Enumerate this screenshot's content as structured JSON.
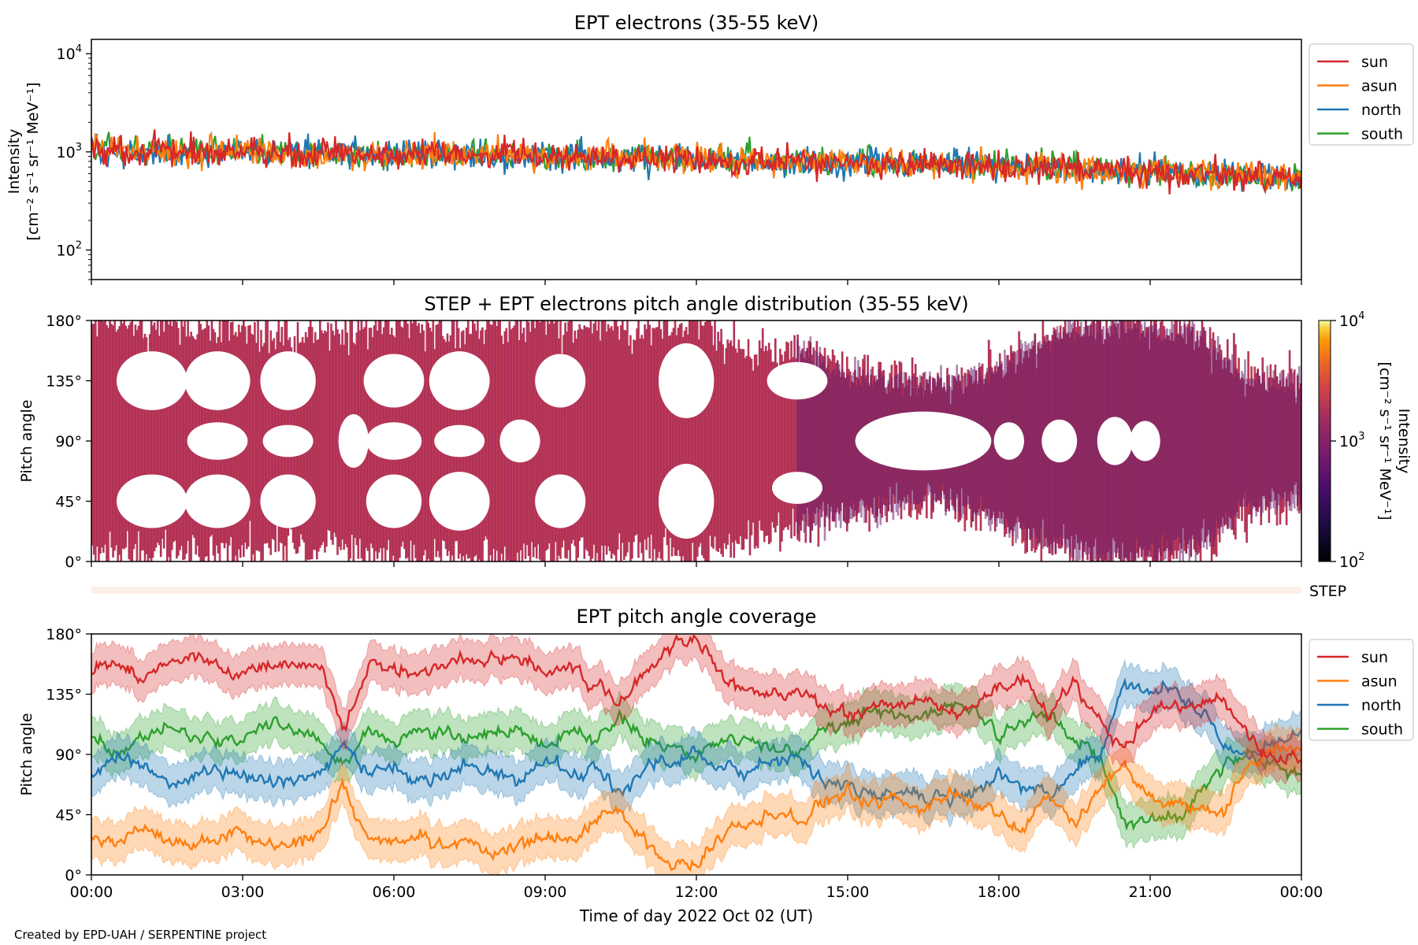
{
  "footer": "Created by EPD-UAH / SERPENTINE project",
  "colors": {
    "sun": "#d62728",
    "asun": "#ff7f0e",
    "north": "#1f77b4",
    "south": "#2ca02c"
  },
  "chart_data": [
    {
      "id": "panel1",
      "type": "line",
      "title": "EPT electrons (35-55 keV)",
      "ylabel": [
        "Intensity",
        "[cm⁻² s⁻¹ sr⁻¹ MeV⁻¹]"
      ],
      "yscale": "log",
      "ylim": [
        50,
        14000
      ],
      "yticks": [
        {
          "v": 100,
          "exp": "2"
        },
        {
          "v": 1000,
          "exp": "3"
        },
        {
          "v": 10000,
          "exp": "4"
        }
      ],
      "legend_position": "right",
      "series": [
        {
          "name": "sun",
          "color": "#d62728",
          "x": [
            0,
            1,
            2,
            3,
            4,
            5,
            6,
            7,
            8,
            9,
            10,
            11,
            12,
            13,
            14,
            15,
            16,
            17,
            18,
            19,
            20,
            21,
            22,
            23,
            24
          ],
          "y": [
            1050,
            1020,
            1000,
            980,
            960,
            950,
            940,
            930,
            920,
            900,
            880,
            860,
            840,
            820,
            800,
            780,
            760,
            730,
            700,
            680,
            650,
            620,
            590,
            560,
            530
          ]
        },
        {
          "name": "asun",
          "color": "#ff7f0e",
          "x": [
            0,
            1,
            2,
            3,
            4,
            5,
            6,
            7,
            8,
            9,
            10,
            11,
            12,
            13,
            14,
            15,
            16,
            17,
            18,
            19,
            20,
            21,
            22,
            23,
            24
          ],
          "y": [
            1080,
            1040,
            1010,
            990,
            970,
            960,
            950,
            940,
            930,
            910,
            890,
            870,
            850,
            830,
            810,
            790,
            770,
            740,
            710,
            690,
            660,
            630,
            600,
            570,
            540
          ]
        },
        {
          "name": "north",
          "color": "#1f77b4",
          "x": [
            0,
            1,
            2,
            3,
            4,
            5,
            6,
            7,
            8,
            9,
            10,
            11,
            12,
            13,
            14,
            15,
            16,
            17,
            18,
            19,
            20,
            21,
            22,
            23,
            24
          ],
          "y": [
            1060,
            1030,
            1000,
            985,
            965,
            955,
            945,
            935,
            925,
            905,
            885,
            865,
            845,
            825,
            805,
            785,
            765,
            735,
            705,
            685,
            655,
            625,
            595,
            565,
            535
          ]
        },
        {
          "name": "south",
          "color": "#2ca02c",
          "x": [
            0,
            1,
            2,
            3,
            4,
            5,
            6,
            7,
            8,
            9,
            10,
            11,
            12,
            13,
            14,
            15,
            16,
            17,
            18,
            19,
            20,
            21,
            22,
            23,
            24
          ],
          "y": [
            1100,
            1060,
            1030,
            1000,
            980,
            970,
            960,
            950,
            940,
            920,
            900,
            880,
            860,
            840,
            820,
            800,
            780,
            750,
            720,
            700,
            670,
            640,
            610,
            580,
            550
          ]
        }
      ]
    },
    {
      "id": "panel2",
      "type": "heatmap",
      "title": "STEP + EPT electrons pitch angle distribution (35-55 keV)",
      "ylabel": "Pitch angle",
      "ylim": [
        0,
        180
      ],
      "yticks": [
        "0°",
        "45°",
        "90°",
        "135°",
        "180°"
      ],
      "colorbar": {
        "label": [
          "Intensity",
          "[cm⁻² s⁻¹ sr⁻¹ MeV⁻¹]"
        ],
        "scale": "log",
        "range": [
          100,
          10000
        ],
        "ticks": [
          {
            "v": 100,
            "exp": "2"
          },
          {
            "v": 1000,
            "exp": "3"
          },
          {
            "v": 10000,
            "exp": "4"
          }
        ],
        "cmap": "inferno"
      },
      "coverage": {
        "x": [
          0,
          1,
          2,
          3,
          4,
          5,
          6,
          7,
          8,
          9,
          10,
          11,
          12,
          13,
          14,
          15,
          16,
          17,
          18,
          19,
          20,
          21,
          22,
          23,
          24
        ],
        "upper": [
          178,
          176,
          174,
          175,
          170,
          175,
          178,
          174,
          178,
          178,
          176,
          170,
          180,
          160,
          160,
          140,
          135,
          135,
          145,
          170,
          178,
          175,
          170,
          135,
          135
        ],
        "lower": [
          2,
          5,
          5,
          8,
          12,
          10,
          2,
          5,
          2,
          2,
          5,
          10,
          0,
          15,
          25,
          35,
          40,
          45,
          30,
          10,
          2,
          5,
          10,
          40,
          45
        ]
      }
    },
    {
      "id": "step-strip",
      "type": "heatmap",
      "label": "STEP"
    },
    {
      "id": "panel3",
      "type": "area",
      "title": "EPT pitch angle coverage",
      "ylabel": "Pitch angle",
      "xlabel": "Time of day 2022 Oct 02 (UT)",
      "ylim": [
        0,
        180
      ],
      "yticks": [
        "0°",
        "45°",
        "90°",
        "135°",
        "180°"
      ],
      "xticks": [
        "00:00",
        "03:00",
        "06:00",
        "09:00",
        "12:00",
        "15:00",
        "18:00",
        "21:00",
        "00:00"
      ],
      "xlim": [
        0,
        24
      ],
      "legend_position": "right",
      "band_halfwidth_deg": 15,
      "series": [
        {
          "name": "sun",
          "color": "#d62728",
          "x": [
            0,
            0.5,
            1,
            1.5,
            2,
            2.5,
            3,
            3.5,
            4,
            4.5,
            5,
            5.5,
            6,
            6.5,
            7,
            7.5,
            8,
            8.5,
            9,
            9.5,
            10,
            10.5,
            11,
            11.5,
            12,
            12.5,
            13,
            13.5,
            14,
            14.5,
            15,
            15.5,
            16,
            16.5,
            17,
            17.5,
            18,
            18.5,
            19,
            19.5,
            20,
            20.5,
            21,
            21.5,
            22,
            22.5,
            23,
            23.5,
            24
          ],
          "y": [
            150,
            160,
            145,
            158,
            162,
            155,
            150,
            160,
            158,
            155,
            110,
            160,
            155,
            150,
            160,
            158,
            165,
            160,
            150,
            155,
            140,
            130,
            155,
            170,
            175,
            150,
            140,
            135,
            140,
            125,
            120,
            125,
            125,
            130,
            120,
            125,
            140,
            145,
            120,
            145,
            115,
            95,
            120,
            125,
            130,
            130,
            100,
            85,
            90
          ]
        },
        {
          "name": "asun",
          "color": "#ff7f0e",
          "x": [
            0,
            0.5,
            1,
            1.5,
            2,
            2.5,
            3,
            3.5,
            4,
            4.5,
            5,
            5.5,
            6,
            6.5,
            7,
            7.5,
            8,
            8.5,
            9,
            9.5,
            10,
            10.5,
            11,
            11.5,
            12,
            12.5,
            13,
            13.5,
            14,
            14.5,
            15,
            15.5,
            16,
            16.5,
            17,
            17.5,
            18,
            18.5,
            19,
            19.5,
            20,
            20.5,
            21,
            21.5,
            22,
            22.5,
            23,
            23.5,
            24
          ],
          "y": [
            30,
            20,
            40,
            25,
            20,
            30,
            30,
            20,
            25,
            30,
            70,
            25,
            25,
            30,
            20,
            25,
            15,
            20,
            30,
            25,
            40,
            50,
            25,
            10,
            5,
            30,
            40,
            45,
            40,
            55,
            60,
            55,
            55,
            50,
            60,
            55,
            45,
            35,
            60,
            40,
            65,
            85,
            60,
            55,
            50,
            50,
            85,
            95,
            92
          ]
        },
        {
          "name": "north",
          "color": "#1f77b4",
          "x": [
            0,
            0.5,
            1,
            1.5,
            2,
            2.5,
            3,
            3.5,
            4,
            4.5,
            5,
            5.5,
            6,
            6.5,
            7,
            7.5,
            8,
            8.5,
            9,
            9.5,
            10,
            10.5,
            11,
            11.5,
            12,
            12.5,
            13,
            13.5,
            14,
            14.5,
            15,
            15.5,
            16,
            16.5,
            17,
            17.5,
            18,
            18.5,
            19,
            19.5,
            20,
            20.5,
            21,
            21.5,
            22,
            22.5,
            23,
            23.5,
            24
          ],
          "y": [
            75,
            90,
            80,
            70,
            75,
            80,
            75,
            70,
            72,
            75,
            100,
            75,
            80,
            70,
            75,
            80,
            75,
            70,
            85,
            75,
            80,
            60,
            80,
            85,
            90,
            80,
            75,
            85,
            90,
            70,
            65,
            60,
            60,
            60,
            55,
            60,
            75,
            65,
            60,
            80,
            90,
            145,
            135,
            140,
            120,
            95,
            90,
            100,
            105
          ]
        },
        {
          "name": "south",
          "color": "#2ca02c",
          "x": [
            0,
            0.5,
            1,
            1.5,
            2,
            2.5,
            3,
            3.5,
            4,
            4.5,
            5,
            5.5,
            6,
            6.5,
            7,
            7.5,
            8,
            8.5,
            9,
            9.5,
            10,
            10.5,
            11,
            11.5,
            12,
            12.5,
            13,
            13.5,
            14,
            14.5,
            15,
            15.5,
            16,
            16.5,
            17,
            17.5,
            18,
            18.5,
            19,
            19.5,
            20,
            20.5,
            21,
            21.5,
            22,
            22.5,
            23,
            23.5,
            24
          ],
          "y": [
            105,
            90,
            100,
            110,
            105,
            100,
            105,
            110,
            108,
            105,
            80,
            105,
            100,
            110,
            105,
            100,
            105,
            110,
            95,
            105,
            100,
            120,
            100,
            95,
            90,
            100,
            105,
            95,
            90,
            110,
            115,
            120,
            120,
            120,
            125,
            120,
            105,
            115,
            120,
            100,
            90,
            35,
            45,
            40,
            60,
            85,
            90,
            80,
            75
          ]
        }
      ]
    }
  ]
}
